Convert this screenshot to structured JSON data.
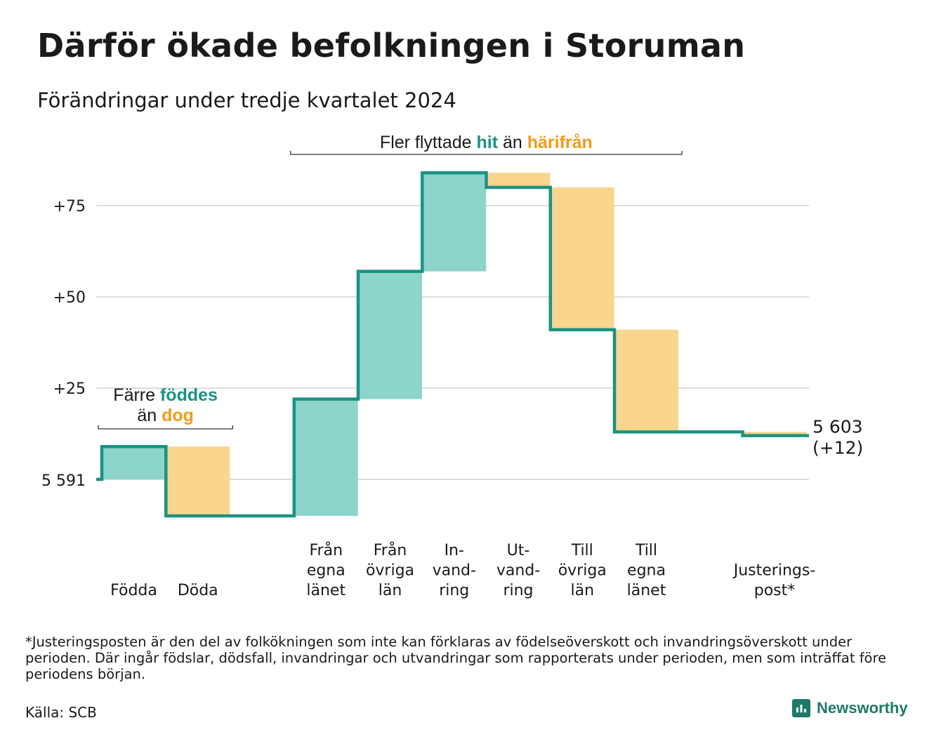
{
  "title": "Därför ökade befolkningen i Storuman",
  "subtitle": "Förändringar under tredje kvartalet 2024",
  "colors": {
    "increase": "#8dd4cb",
    "decrease": "#fad58e",
    "line": "#1a9383",
    "teal_text": "#1a9383",
    "orange_text": "#f39c1a",
    "grid": "#dddddd"
  },
  "chart_data": {
    "type": "waterfall",
    "start_value": 5591,
    "start_label": "5 591",
    "end_value": 5603,
    "end_label_1": "5 603",
    "end_label_2": "(+12)",
    "y_ticks": [
      {
        "value": 25,
        "label": "+25"
      },
      {
        "value": 50,
        "label": "+50"
      },
      {
        "value": 75,
        "label": "+75"
      }
    ],
    "ylim": [
      -14,
      90
    ],
    "steps": [
      {
        "label": [
          "Födda"
        ],
        "change": 9,
        "slot": 0
      },
      {
        "label": [
          "Döda"
        ],
        "change": -19,
        "slot": 1
      },
      {
        "label": [
          "Från",
          "egna",
          "länet"
        ],
        "change": 32,
        "slot": 3
      },
      {
        "label": [
          "Från",
          "övriga",
          "län"
        ],
        "change": 35,
        "slot": 4
      },
      {
        "label": [
          "In-",
          "vand-",
          "ring"
        ],
        "change": 27,
        "slot": 5
      },
      {
        "label": [
          "Ut-",
          "vand-",
          "ring"
        ],
        "change": -4,
        "slot": 6
      },
      {
        "label": [
          "Till",
          "övriga",
          "län"
        ],
        "change": -39,
        "slot": 7
      },
      {
        "label": [
          "Till",
          "egna",
          "länet"
        ],
        "change": -28,
        "slot": 8
      },
      {
        "label": [
          "Justerings-",
          "post*"
        ],
        "change": -1,
        "slot": 10
      }
    ],
    "annotations": {
      "births_deaths": {
        "line1": "Färre",
        "teal": "föddes",
        "pre": "än",
        "orange": "dog"
      },
      "migration": {
        "pre": "Fler flyttade",
        "teal": "hit",
        "mid": "än",
        "orange": "härifrån"
      }
    }
  },
  "footnote": "*Justeringsposten är den del av folkökningen som inte kan förklaras av födelseöverskott och invandringsöverskott under perioden. Där ingår födslar, dödsfall, invandringar och utvandringar som rapporterats under perioden, men som inträffat före periodens början.",
  "source": "Källa: SCB",
  "brand": "Newsworthy"
}
